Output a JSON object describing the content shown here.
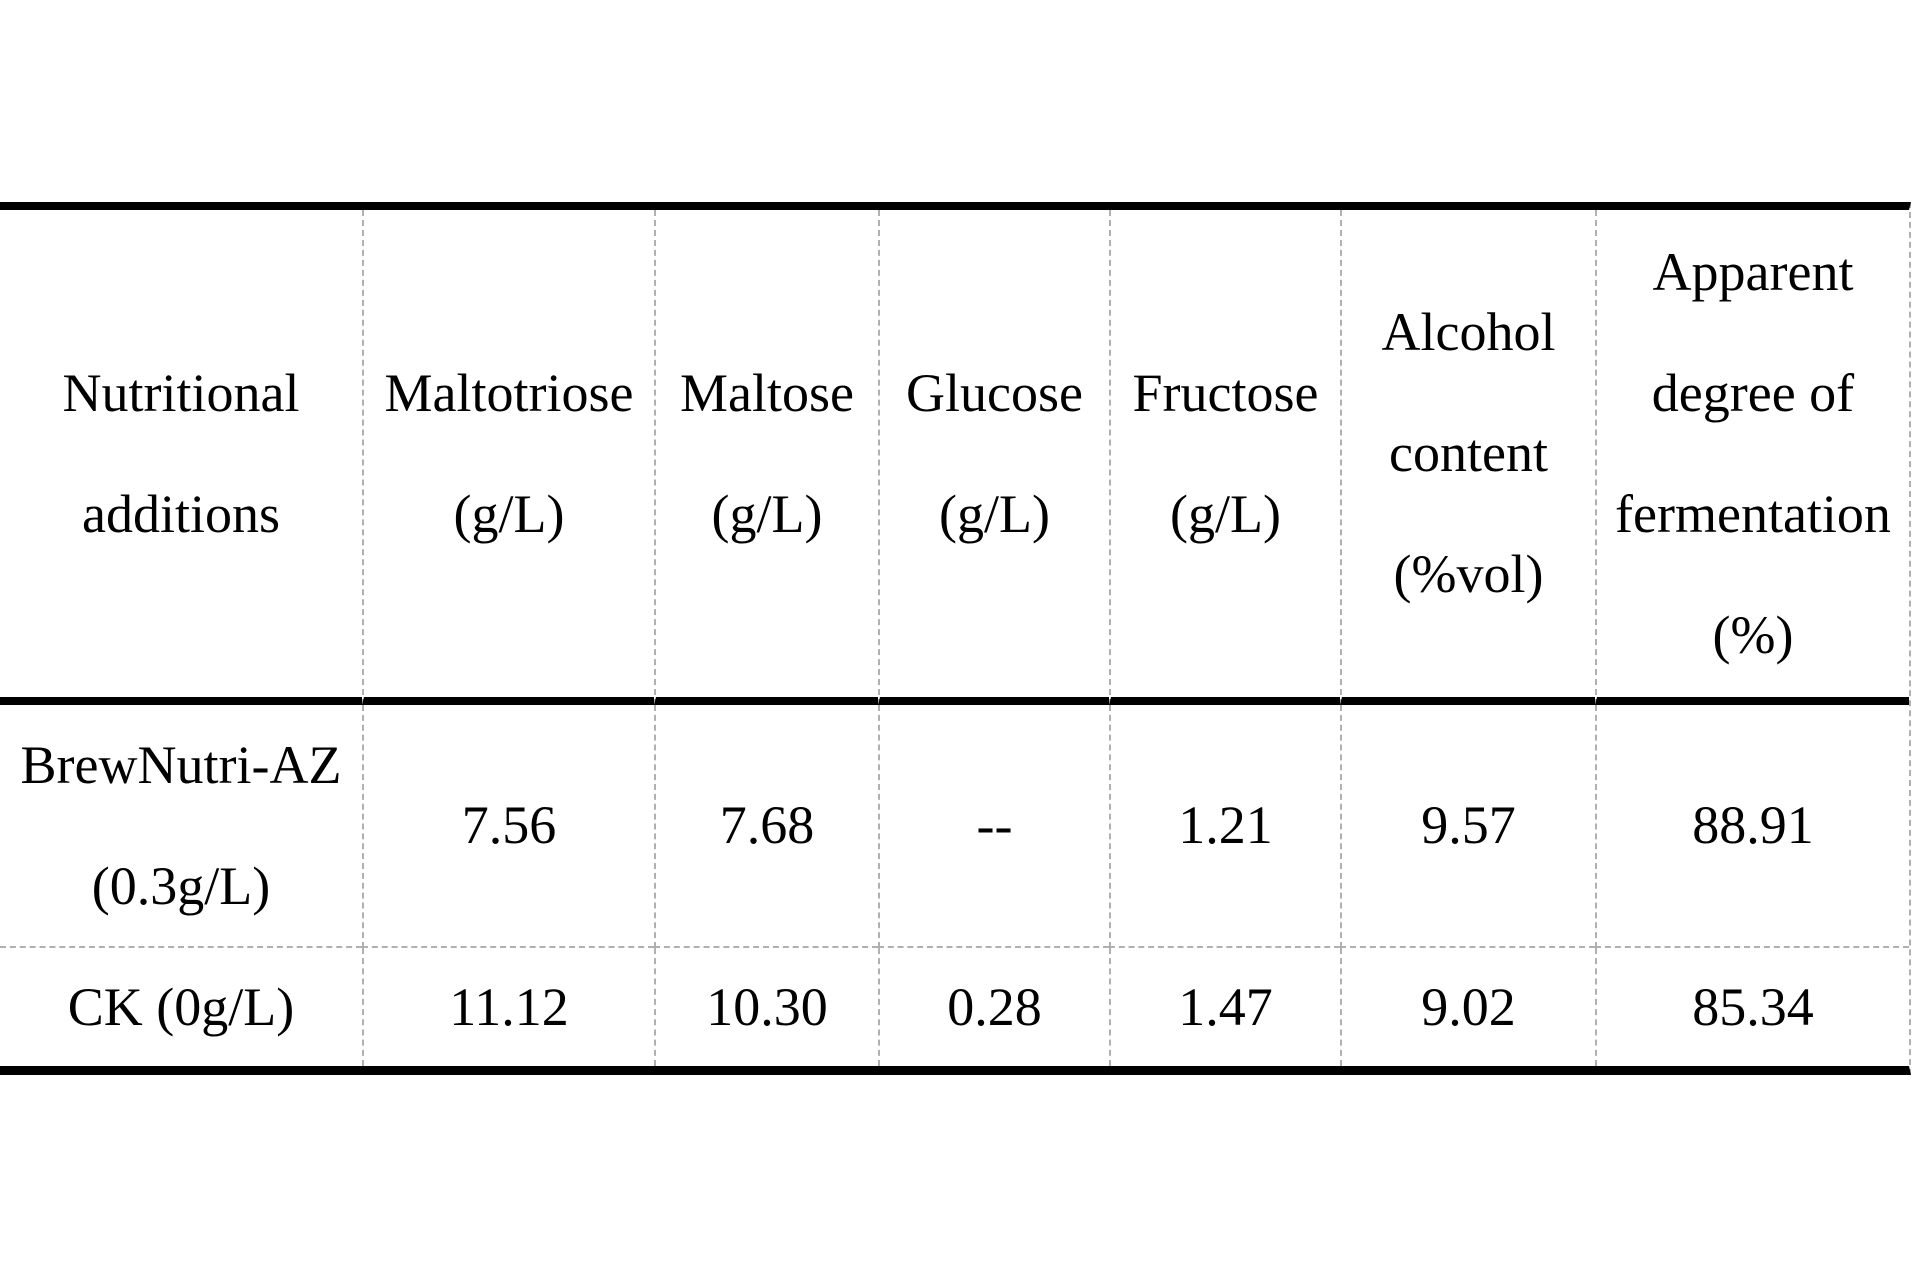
{
  "page": {
    "background_color": "#ffffff"
  },
  "table": {
    "style": {
      "rule_color": "#000000",
      "grid_color": "#b0b0b0",
      "text_color": "#000000"
    },
    "columns": [
      {
        "id": "nutritional-additions",
        "header": "Nutritional\nadditions"
      },
      {
        "id": "maltotriose",
        "header": "Maltotriose\n(g/L)"
      },
      {
        "id": "maltose",
        "header": "Maltose\n(g/L)"
      },
      {
        "id": "glucose",
        "header": "Glucose\n(g/L)"
      },
      {
        "id": "fructose",
        "header": "Fructose\n(g/L)"
      },
      {
        "id": "alcohol-content",
        "header": "Alcohol\ncontent\n(%vol)"
      },
      {
        "id": "apparent-degree-of-fermentation",
        "header": "Apparent\ndegree of\nfermentation\n(%)"
      }
    ],
    "rows": [
      {
        "label": "BrewNutri-AZ\n(0.3g/L)",
        "values": [
          "7.56",
          "7.68",
          "--",
          "1.21",
          "9.57",
          "88.91"
        ]
      },
      {
        "label": "CK (0g/L)",
        "values": [
          "11.12",
          "10.30",
          "0.28",
          "1.47",
          "9.02",
          "85.34"
        ]
      }
    ]
  }
}
